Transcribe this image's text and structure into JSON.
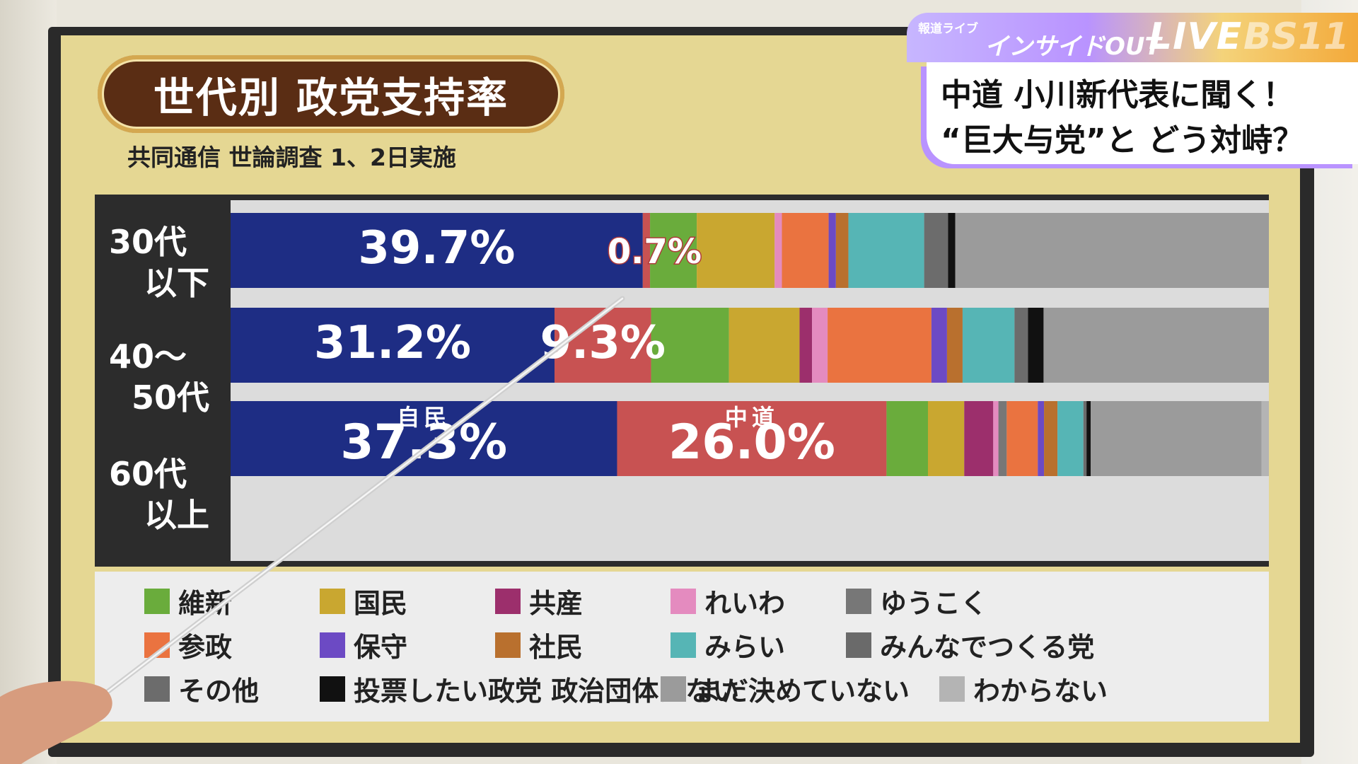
{
  "title": "世代別 政党支持率",
  "subtitle": "共同通信 世論調査 1、2日実施",
  "broadcast": {
    "program_small": "報道ライブ",
    "program_name": "インサイドOUT",
    "live": "LIVE",
    "channel": "BS11",
    "headline_1": "中道 小川新代表に聞く！",
    "headline_2": "“巨大与党”と どう対峙？"
  },
  "chart_data": {
    "type": "bar",
    "orientation": "horizontal",
    "stacked": true,
    "normalized": true,
    "categories": [
      "30代以下",
      "40～50代",
      "60代以上"
    ],
    "category_labels": [
      [
        "30代",
        "以下"
      ],
      [
        "40～",
        "50代"
      ],
      [
        "60代",
        "以上"
      ]
    ],
    "series": [
      {
        "name": "自民",
        "color": "#1e2d84",
        "values": [
          39.7,
          31.2,
          37.3
        ]
      },
      {
        "name": "中道",
        "color": "#c85252",
        "values": [
          0.7,
          9.3,
          26.0
        ]
      },
      {
        "name": "維新",
        "color": "#6aac3c",
        "values": [
          4.5,
          7.5,
          4.0
        ]
      },
      {
        "name": "国民",
        "color": "#c9a730",
        "values": [
          7.5,
          6.8,
          3.5
        ]
      },
      {
        "name": "共産",
        "color": "#9c2f6c",
        "values": [
          0.0,
          1.2,
          2.8
        ]
      },
      {
        "name": "れいわ",
        "color": "#e48bbf",
        "values": [
          0.7,
          1.5,
          0.5
        ]
      },
      {
        "name": "ゆうこく",
        "color": "#777777",
        "values": [
          0.0,
          0.0,
          0.8
        ]
      },
      {
        "name": "参政",
        "color": "#ea7340",
        "values": [
          4.5,
          10.0,
          3.0
        ]
      },
      {
        "name": "保守",
        "color": "#6c4ac4",
        "values": [
          0.7,
          1.5,
          0.6
        ]
      },
      {
        "name": "社民",
        "color": "#b9702e",
        "values": [
          1.2,
          1.5,
          1.3
        ]
      },
      {
        "name": "みらい",
        "color": "#56b5b5",
        "values": [
          7.3,
          5.0,
          2.5
        ]
      },
      {
        "name": "みんなでつくる党",
        "color": "#6a6a6a",
        "values": [
          0.0,
          0.0,
          0.0
        ]
      },
      {
        "name": "その他",
        "color": "#6c6c6c",
        "values": [
          2.3,
          1.3,
          0.3
        ]
      },
      {
        "name": "投票したい政党 政治団体はない",
        "color": "#111111",
        "values": [
          0.7,
          1.5,
          0.4
        ]
      },
      {
        "name": "まだ決めていない",
        "color": "#9b9b9b",
        "values": [
          30.2,
          21.7,
          16.5
        ]
      },
      {
        "name": "わからない",
        "color": "#b4b4b4",
        "values": [
          0.0,
          0.0,
          0.7
        ]
      }
    ],
    "data_labels": [
      {
        "category": "30代以下",
        "series": "自民",
        "text": "39.7%"
      },
      {
        "category": "30代以下",
        "series": "中道",
        "text": "0.7%"
      },
      {
        "category": "40～50代",
        "series": "自民",
        "text": "31.2%"
      },
      {
        "category": "40～50代",
        "series": "中道",
        "text": "9.3%"
      },
      {
        "category": "60代以上",
        "series": "自民",
        "text": "37.3%",
        "party": "自民"
      },
      {
        "category": "60代以上",
        "series": "中道",
        "text": "26.0%",
        "party": "中道"
      }
    ],
    "legend": {
      "placement": "bottom",
      "rows": [
        [
          "維新",
          "国民",
          "共産",
          "れいわ",
          "ゆうこく"
        ],
        [
          "参政",
          "保守",
          "社民",
          "みらい",
          "みんなでつくる党"
        ],
        [
          "その他",
          "投票したい政党 政治団体はない",
          "まだ決めていない",
          "わからない"
        ]
      ]
    },
    "xlim": [
      0,
      100
    ]
  }
}
